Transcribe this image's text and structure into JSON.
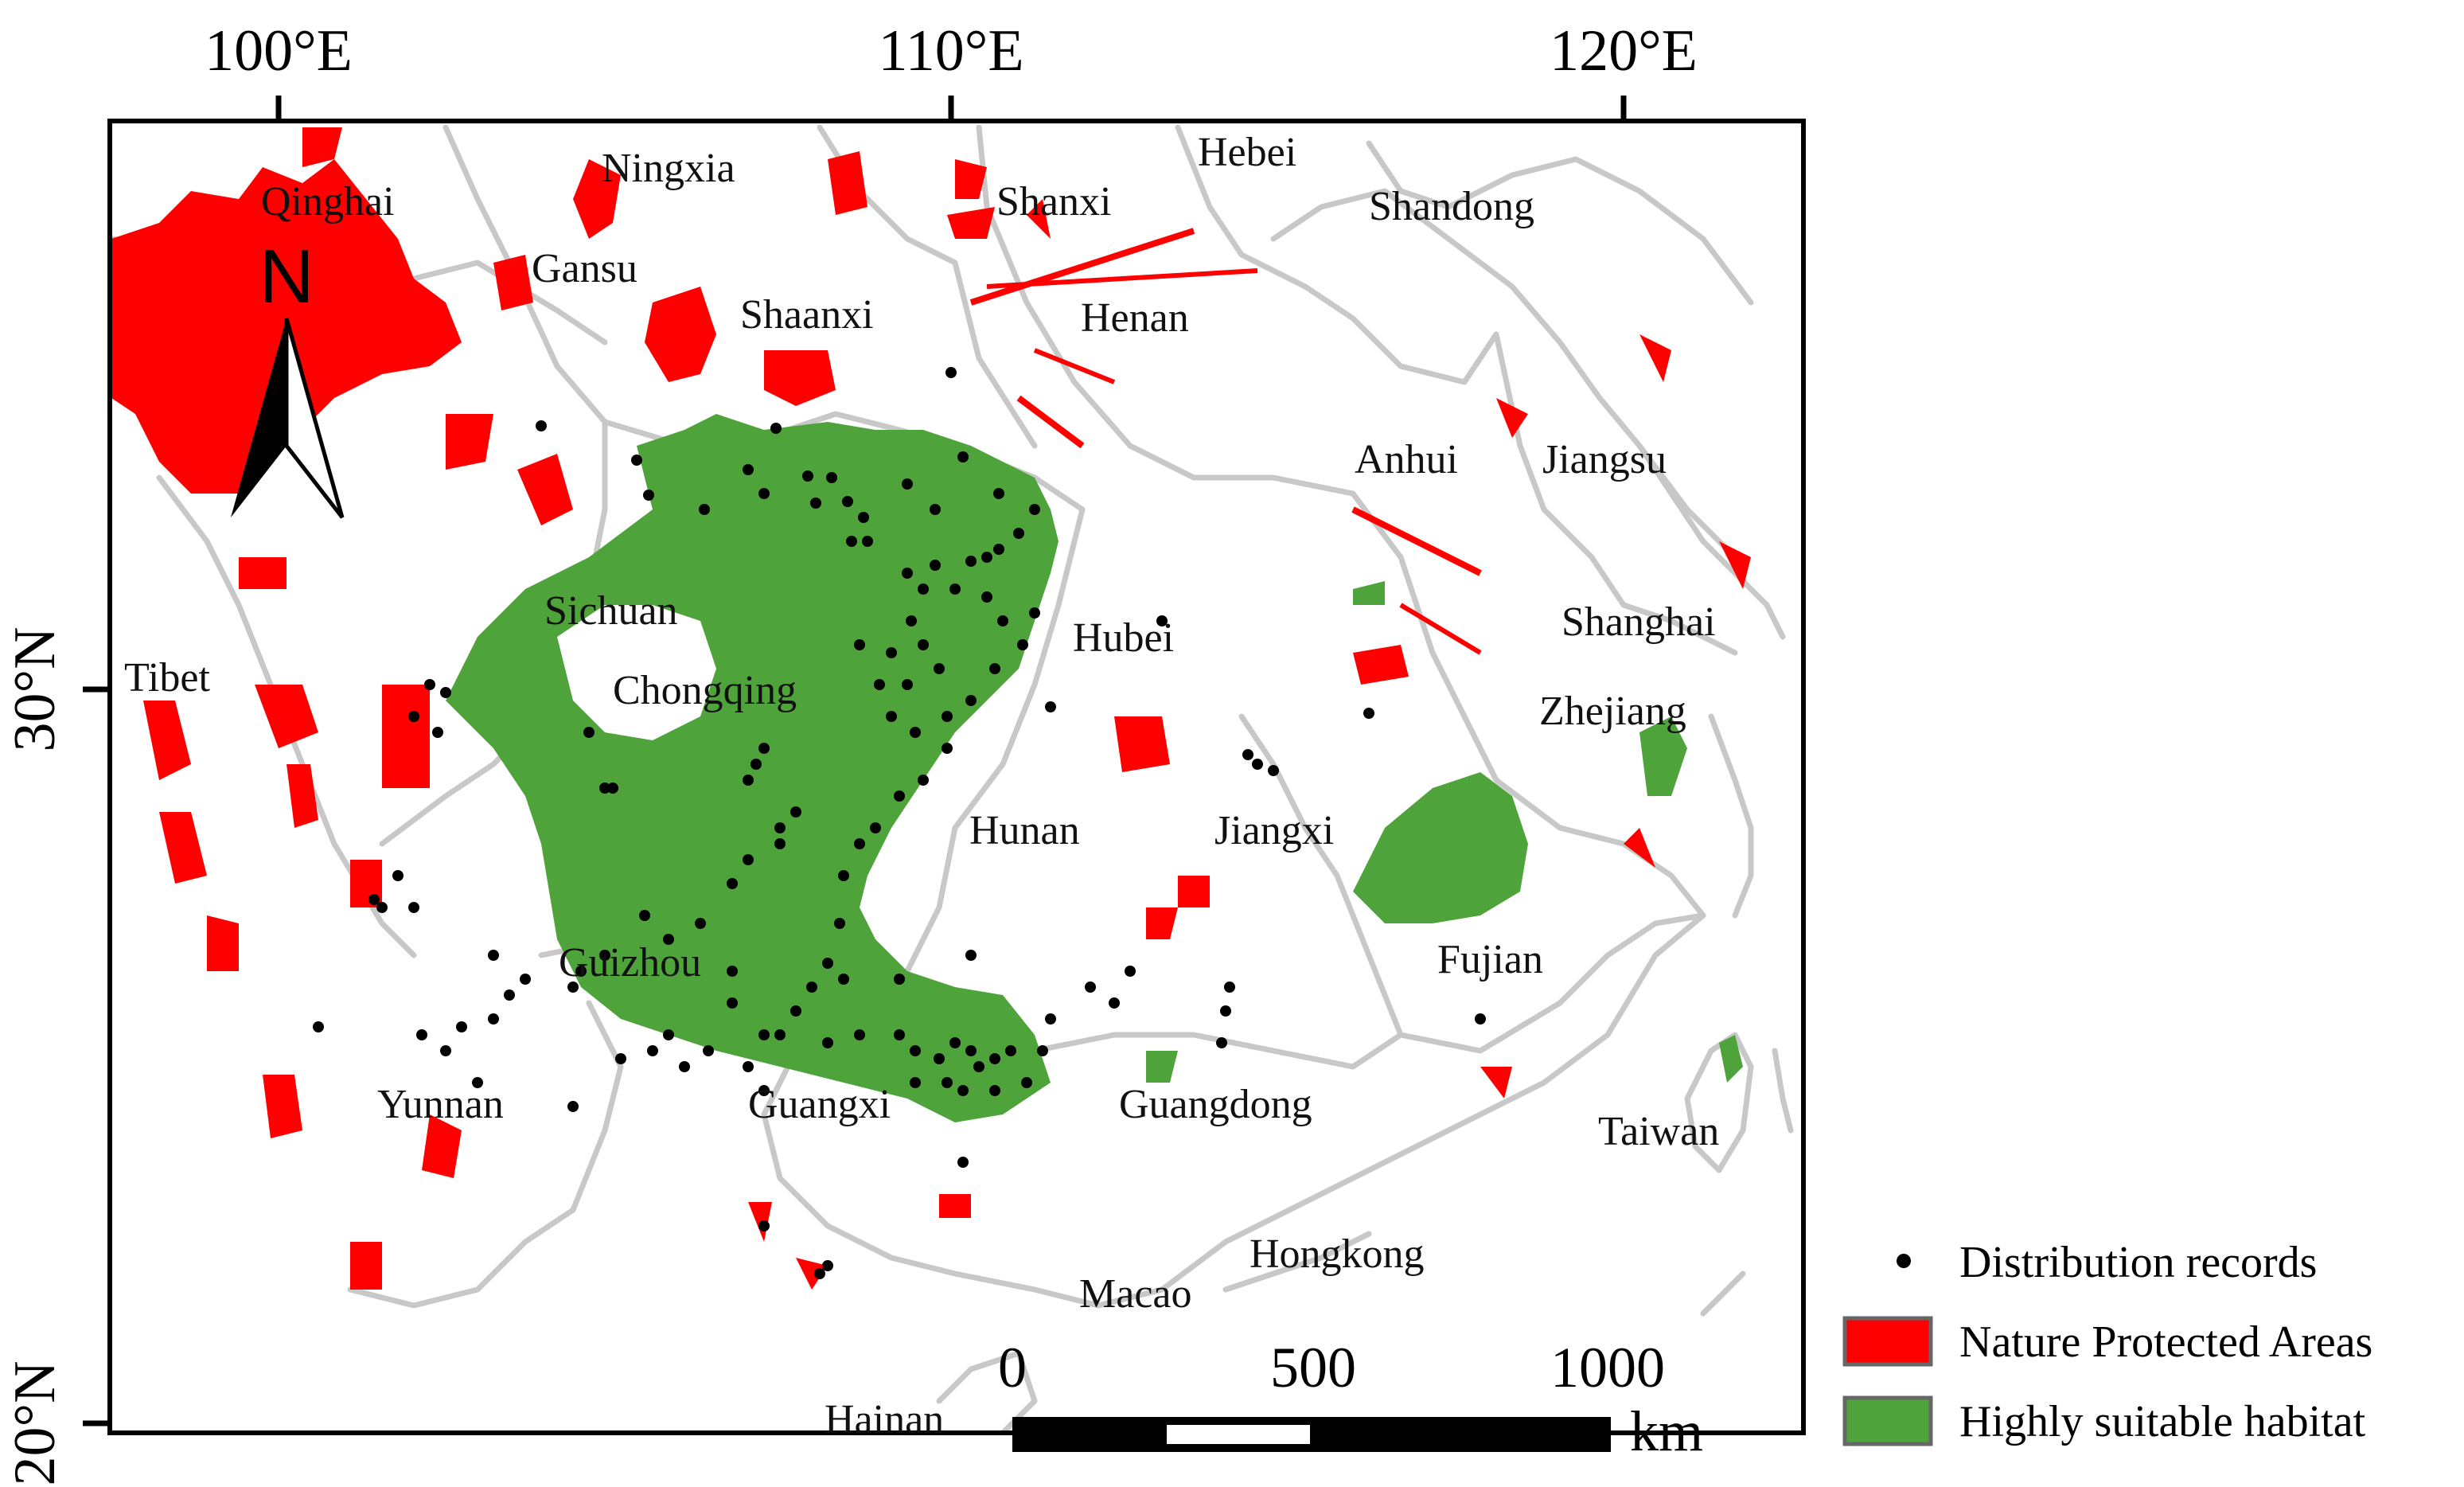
{
  "colors": {
    "protected": "#ff0000",
    "suitable": "#4ea33a",
    "boundary": "#c8c8c8",
    "frame": "#000000",
    "records": "#000000"
  },
  "axes": {
    "lon_labels": [
      "100°E",
      "110°E",
      "120°E"
    ],
    "lat_labels": [
      "30°N",
      "20°N"
    ]
  },
  "north_arrow": {
    "label": "N",
    "icon": "north-arrow-icon"
  },
  "places": [
    {
      "id": "qinghai",
      "name": "Qinghai"
    },
    {
      "id": "ningxia",
      "name": "Ningxia"
    },
    {
      "id": "hebei",
      "name": "Hebei"
    },
    {
      "id": "shanxi",
      "name": "Shanxi"
    },
    {
      "id": "shandong",
      "name": "Shandong"
    },
    {
      "id": "gansu",
      "name": "Gansu"
    },
    {
      "id": "shaanxi",
      "name": "Shaanxi"
    },
    {
      "id": "henan",
      "name": "Henan"
    },
    {
      "id": "anhui",
      "name": "Anhui"
    },
    {
      "id": "jiangsu",
      "name": "Jiangsu"
    },
    {
      "id": "sichuan",
      "name": "Sichuan"
    },
    {
      "id": "hubei",
      "name": "Hubei"
    },
    {
      "id": "shanghai",
      "name": "Shanghai"
    },
    {
      "id": "tibet",
      "name": "Tibet"
    },
    {
      "id": "chongqing",
      "name": "Chongqing"
    },
    {
      "id": "zhejiang",
      "name": "Zhejiang"
    },
    {
      "id": "hunan",
      "name": "Hunan"
    },
    {
      "id": "jiangxi",
      "name": "Jiangxi"
    },
    {
      "id": "fujian",
      "name": "Fujian"
    },
    {
      "id": "guizhou",
      "name": "Guizhou"
    },
    {
      "id": "yunnan",
      "name": "Yunnan"
    },
    {
      "id": "guangxi",
      "name": "Guangxi"
    },
    {
      "id": "guangdong",
      "name": "Guangdong"
    },
    {
      "id": "taiwan",
      "name": "Taiwan"
    },
    {
      "id": "hongkong",
      "name": "Hongkong"
    },
    {
      "id": "macao",
      "name": "Macao"
    },
    {
      "id": "hainan",
      "name": "Hainan"
    }
  ],
  "scale_bar": {
    "ticks": [
      "0",
      "500",
      "1000"
    ],
    "unit": "km"
  },
  "legend": [
    {
      "id": "records",
      "label": "Distribution records"
    },
    {
      "id": "protected",
      "label": "Nature Protected Areas"
    },
    {
      "id": "suitable",
      "label": "Highly suitable habitat"
    }
  ]
}
